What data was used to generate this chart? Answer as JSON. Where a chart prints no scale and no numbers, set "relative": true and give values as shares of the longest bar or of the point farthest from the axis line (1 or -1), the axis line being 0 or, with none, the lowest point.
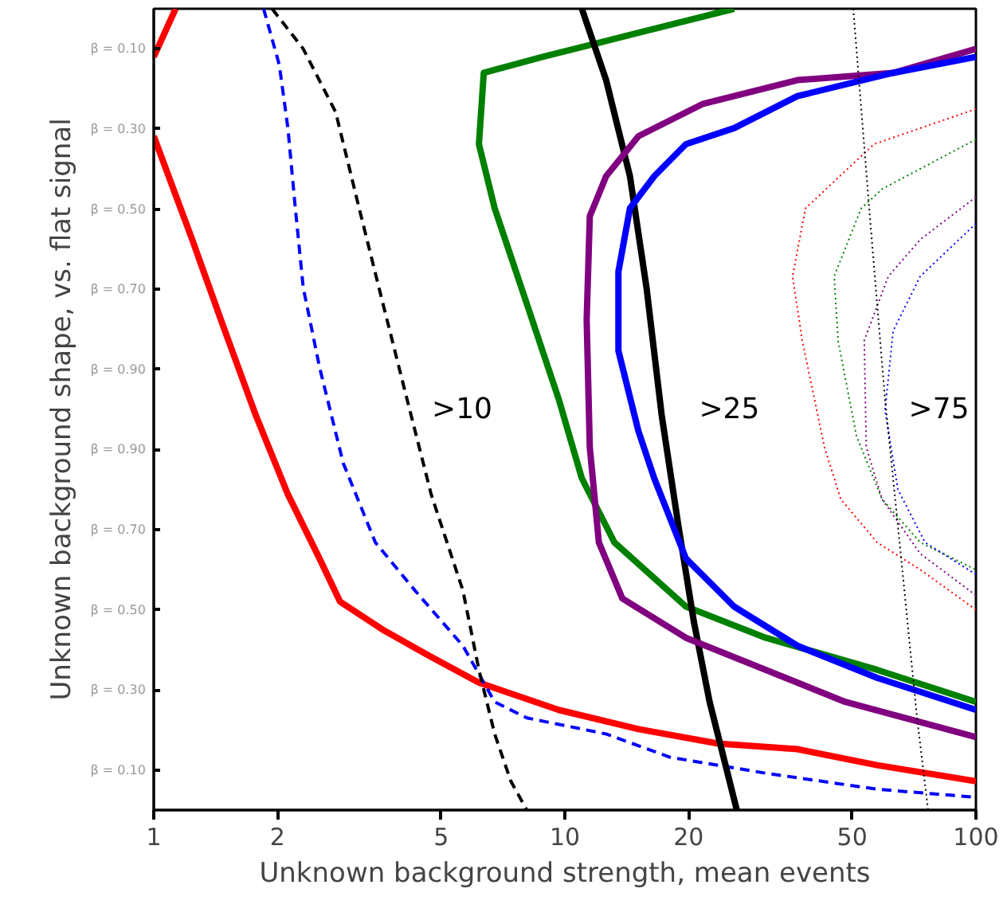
{
  "chart_data": {
    "type": "line",
    "xlabel": "Unknown background strength, mean events",
    "ylabel": "Unknown background shape, vs. flat signal",
    "log": "x",
    "xlim": [
      1,
      100
    ],
    "xticks": [
      1,
      2,
      5,
      10,
      20,
      50,
      100
    ],
    "relative": true,
    "grid": false,
    "series": [
      {
        "color": "#ff0000",
        "line_style": "solid",
        "x": [
          1.0,
          1.13,
          null,
          1.0,
          1.24,
          1.48,
          1.77,
          2.12,
          2.53,
          2.84,
          3.61,
          4.73,
          6.18,
          9.66,
          15.1,
          23.6,
          36.8,
          57.5,
          100
        ],
        "values": [
          0.94,
          1.0,
          null,
          0.841,
          0.712,
          0.602,
          0.493,
          0.394,
          0.314,
          0.26,
          0.225,
          0.191,
          0.159,
          0.125,
          0.101,
          0.083,
          0.076,
          0.056,
          0.036
        ]
      },
      {
        "color": "#0000ff",
        "line_style": "dashed",
        "x": [
          1.85,
          2.02,
          2.12,
          2.21,
          2.31,
          2.53,
          2.89,
          3.46,
          4.32,
          5.65,
          6.75,
          8.08,
          12.6,
          18.0,
          30.8,
          57.5,
          100
        ],
        "values": [
          1.0,
          0.93,
          0.851,
          0.751,
          0.652,
          0.553,
          0.433,
          0.334,
          0.274,
          0.205,
          0.135,
          0.115,
          0.095,
          0.066,
          0.046,
          0.026,
          0.016
        ]
      },
      {
        "color": "#000000",
        "line_style": "dashed",
        "x": [
          1.94,
          2.31,
          2.77,
          3.16,
          3.61,
          4.13,
          4.73,
          5.65,
          6.18,
          6.75,
          7.39,
          8.08
        ],
        "values": [
          1.0,
          0.95,
          0.871,
          0.751,
          0.632,
          0.513,
          0.394,
          0.274,
          0.175,
          0.095,
          0.036,
          0
        ]
      },
      {
        "color": "#008000",
        "line_style": "solid",
        "x": [
          25.8,
          15.1,
          8.83,
          6.35,
          6.18,
          6.75,
          8.08,
          9.66,
          11.0,
          13.2,
          19.7,
          30.8,
          57.5,
          100
        ],
        "values": [
          1.0,
          0.97,
          0.94,
          0.92,
          0.831,
          0.751,
          0.632,
          0.513,
          0.414,
          0.334,
          0.254,
          0.215,
          0.175,
          0.135
        ]
      },
      {
        "color": "#000000",
        "line_style": "solid",
        "x": [
          11.0,
          12.6,
          14.4,
          15.8,
          17.2,
          18.9,
          20.6,
          22.5,
          24.6,
          26.2
        ],
        "values": [
          1.0,
          0.911,
          0.791,
          0.652,
          0.493,
          0.354,
          0.235,
          0.135,
          0.056,
          0
        ]
      },
      {
        "color": "#800080",
        "line_style": "solid",
        "x": [
          100,
          62.9,
          36.8,
          21.6,
          15.1,
          12.6,
          11.5,
          11.3,
          11.5,
          12.1,
          13.8,
          19.7,
          30.8,
          48.1,
          100
        ],
        "values": [
          0.95,
          0.92,
          0.911,
          0.881,
          0.841,
          0.791,
          0.741,
          0.612,
          0.453,
          0.334,
          0.264,
          0.215,
          0.175,
          0.135,
          0.091
        ]
      },
      {
        "color": "#0000ff",
        "line_style": "solid",
        "x": [
          100,
          62.9,
          36.8,
          25.8,
          19.7,
          16.5,
          14.4,
          13.5,
          13.5,
          15.1,
          16.5,
          19.7,
          25.8,
          36.8,
          57.5,
          100
        ],
        "values": [
          0.94,
          0.92,
          0.891,
          0.851,
          0.831,
          0.791,
          0.751,
          0.672,
          0.573,
          0.473,
          0.414,
          0.314,
          0.254,
          0.205,
          0.165,
          0.125
        ]
      },
      {
        "color": "#ff0000",
        "line_style": "dotted",
        "x": [
          100,
          56.5,
          38.5,
          35.8,
          37.8,
          42.8,
          46.9,
          57.5,
          73.2,
          100
        ],
        "values": [
          0.875,
          0.831,
          0.751,
          0.666,
          0.586,
          0.453,
          0.388,
          0.334,
          0.3,
          0.25
        ]
      },
      {
        "color": "#008000",
        "line_style": "dotted",
        "x": [
          100,
          59.1,
          52.6,
          45.2,
          46.2,
          51.2,
          59.1,
          73.2,
          100
        ],
        "values": [
          0.837,
          0.775,
          0.751,
          0.666,
          0.586,
          0.467,
          0.388,
          0.334,
          0.3
        ]
      },
      {
        "color": "#800080",
        "line_style": "dotted",
        "x": [
          100,
          73.2,
          61.2,
          53.5,
          54.1,
          59.1,
          73.2,
          100
        ],
        "values": [
          0.765,
          0.712,
          0.666,
          0.586,
          0.453,
          0.388,
          0.32,
          0.268
        ]
      },
      {
        "color": "#0000ff",
        "line_style": "dotted",
        "x": [
          100,
          73.2,
          62.9,
          60.1,
          64.6,
          75.2,
          100
        ],
        "values": [
          0.732,
          0.666,
          0.598,
          0.499,
          0.4,
          0.334,
          0.294
        ]
      },
      {
        "color": "#000000",
        "line_style": "dotted",
        "x": [
          50.3,
          55.0,
          60.1,
          65.8,
          71.9,
          76.5
        ],
        "values": [
          1.0,
          0.751,
          0.513,
          0.314,
          0.115,
          0
        ]
      }
    ],
    "annotations": [
      "β = 0.10",
      "β = 0.30",
      "β = 0.50",
      "β = 0.70",
      "β = 0.90",
      "β = 0.90",
      "β = 0.70",
      "β = 0.50",
      "β = 0.30",
      "β = 0.10",
      ">10",
      ">25",
      ">75"
    ]
  }
}
